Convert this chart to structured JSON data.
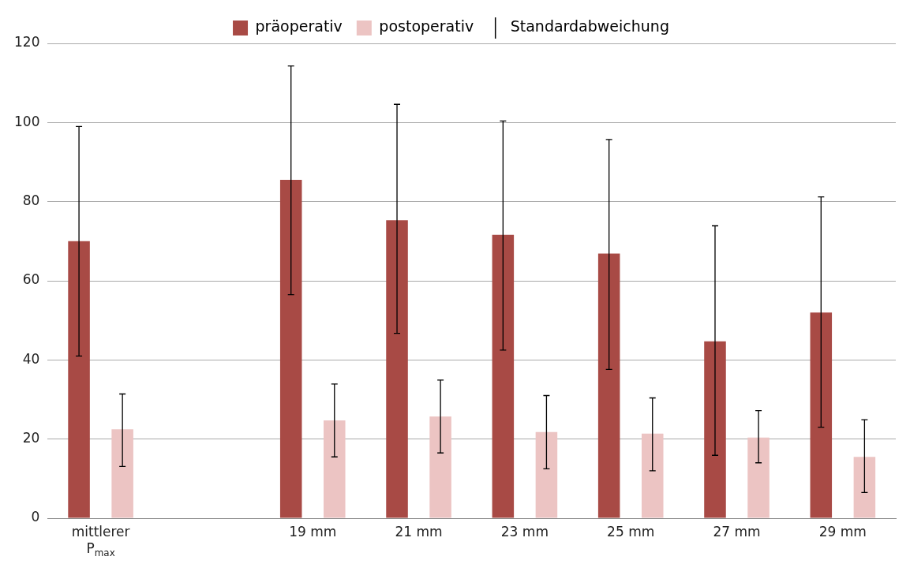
{
  "chart_data": {
    "type": "bar",
    "categories": [
      "mittlerer P$_{max}$",
      null,
      "19 mm",
      "21 mm",
      "23 mm",
      "25 mm",
      "27 mm",
      "29 mm"
    ],
    "series": [
      {
        "name": "präoperativ",
        "color": "#a84a45",
        "values": [
          70,
          null,
          85.5,
          75.3,
          71.6,
          66.9,
          44.7,
          52
        ],
        "errors": [
          [
            41,
            99
          ],
          null,
          [
            56.5,
            114.3
          ],
          [
            46.7,
            104.6
          ],
          [
            42.5,
            100.4
          ],
          [
            37.6,
            95.7
          ],
          [
            15.9,
            73.9
          ],
          [
            23,
            81.2
          ]
        ]
      },
      {
        "name": "postoperativ",
        "color": "#ecc4c3",
        "values": [
          22.5,
          null,
          24.7,
          25.7,
          21.8,
          21.4,
          20.4,
          15.5
        ],
        "errors": [
          [
            13.1,
            31.4
          ],
          null,
          [
            15.5,
            33.9
          ],
          [
            16.5,
            34.9
          ],
          [
            12.5,
            31
          ],
          [
            12,
            30.4
          ],
          [
            14,
            27.2
          ],
          [
            6.5,
            24.9
          ]
        ]
      }
    ],
    "annotations": [
      "Standardabweichung"
    ],
    "ylim": [
      0,
      120
    ],
    "yticks": [
      0,
      20,
      40,
      60,
      80,
      100,
      120
    ],
    "grid": "y",
    "legend": "top"
  }
}
